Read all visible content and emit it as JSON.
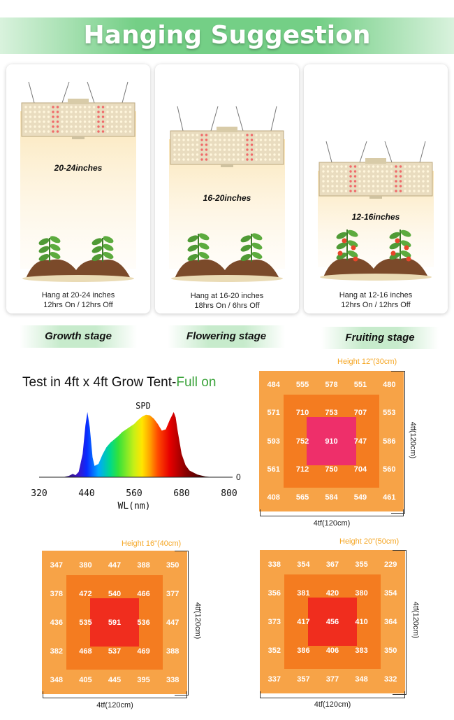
{
  "header": {
    "title": "Hanging Suggestion"
  },
  "cards": [
    {
      "distance": "20-24inches",
      "line1": "Hang at 20-24 inches",
      "line2": "12hrs On / 12hrs Off",
      "stage": "Growth stage"
    },
    {
      "distance": "16-20inches",
      "line1": "Hang at 16-20 inches",
      "line2": "18hrs On / 6hrs Off",
      "stage": "Flowering stage"
    },
    {
      "distance": "12-16inches",
      "line1": "Hang at 12-16 inches",
      "line2": "12hrs On / 12hrs Off",
      "stage": "Fruiting stage"
    }
  ],
  "test": {
    "title_main": "Test in 4ft x 4ft Grow Tent-",
    "title_highlight": "Full on"
  },
  "chart_data": {
    "type": "area",
    "title": "SPD",
    "xlabel": "WL(nm)",
    "ylabel": "",
    "xlim": [
      320,
      800
    ],
    "x_ticks": [
      "320",
      "440",
      "560",
      "680",
      "800"
    ],
    "y_tick": "0",
    "x": [
      380,
      395,
      405,
      412,
      420,
      430,
      437,
      442,
      448,
      455,
      460,
      470,
      480,
      490,
      500,
      510,
      520,
      530,
      540,
      550,
      560,
      570,
      580,
      590,
      600,
      610,
      620,
      630,
      640,
      650,
      655,
      660,
      665,
      670,
      680,
      690,
      700,
      720,
      740,
      760
    ],
    "y": [
      0,
      0.02,
      0.05,
      0.03,
      0.08,
      0.35,
      0.78,
      0.98,
      0.75,
      0.3,
      0.17,
      0.2,
      0.34,
      0.45,
      0.52,
      0.57,
      0.62,
      0.68,
      0.72,
      0.76,
      0.8,
      0.86,
      0.91,
      0.94,
      0.93,
      0.88,
      0.8,
      0.7,
      0.72,
      0.86,
      0.92,
      0.98,
      0.9,
      0.7,
      0.35,
      0.18,
      0.1,
      0.04,
      0.01,
      0
    ]
  },
  "grids": [
    {
      "height_label": "Height 12\"(30cm)",
      "side_label": "4tf(120cm)",
      "bottom_label": "4tf(120cm)",
      "core_color": "#ee2f6a",
      "rows": [
        [
          "484",
          "555",
          "578",
          "551",
          "480"
        ],
        [
          "571",
          "710",
          "753",
          "707",
          "553"
        ],
        [
          "593",
          "752",
          "910",
          "747",
          "586"
        ],
        [
          "561",
          "712",
          "750",
          "704",
          "560"
        ],
        [
          "408",
          "565",
          "584",
          "549",
          "461"
        ]
      ]
    },
    {
      "height_label": "Height 16\"(40cm)",
      "side_label": "4tf(120cm)",
      "bottom_label": "4tf(120cm)",
      "core_color": "#f02d1e",
      "rows": [
        [
          "347",
          "380",
          "447",
          "388",
          "350"
        ],
        [
          "378",
          "472",
          "540",
          "466",
          "377"
        ],
        [
          "436",
          "535",
          "591",
          "536",
          "447"
        ],
        [
          "382",
          "468",
          "537",
          "469",
          "388"
        ],
        [
          "348",
          "405",
          "445",
          "395",
          "338"
        ]
      ]
    },
    {
      "height_label": "Height 20\"(50cm)",
      "side_label": "4tf(120cm)",
      "bottom_label": "4tf(120cm)",
      "core_color": "#f02d1e",
      "rows": [
        [
          "338",
          "354",
          "367",
          "355",
          "229"
        ],
        [
          "356",
          "381",
          "420",
          "380",
          "354"
        ],
        [
          "373",
          "417",
          "456",
          "410",
          "364"
        ],
        [
          "352",
          "386",
          "406",
          "383",
          "350"
        ],
        [
          "337",
          "357",
          "377",
          "348",
          "332"
        ]
      ]
    }
  ]
}
